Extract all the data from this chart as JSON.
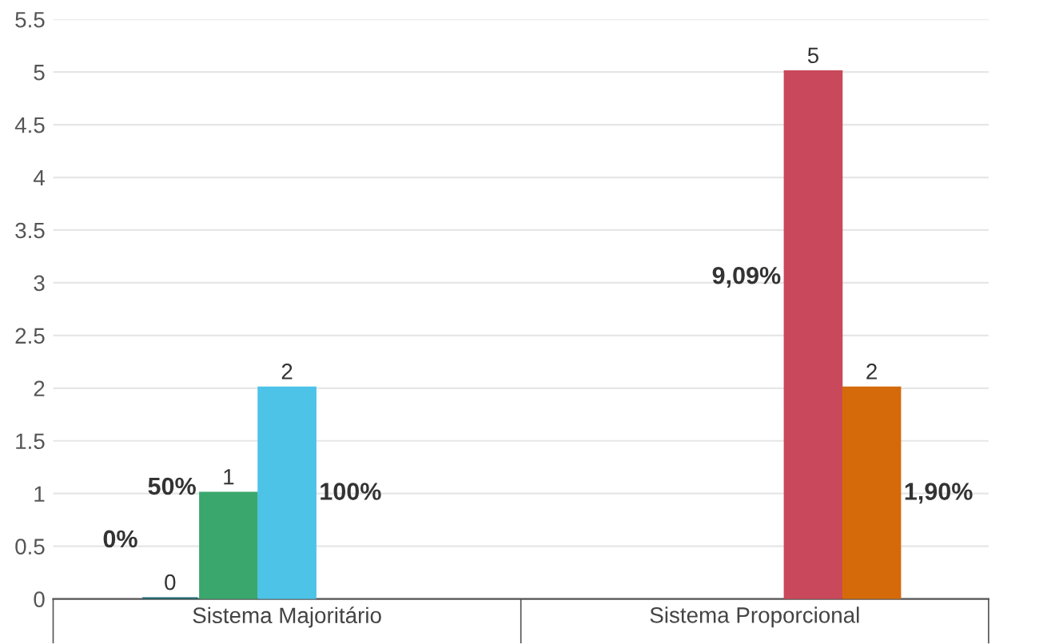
{
  "chart_data": {
    "type": "bar",
    "categories": [
      "Sistema Majoritário",
      "Sistema Proporcional"
    ],
    "series": [
      {
        "color": "#1d6b73",
        "values": [
          0,
          null
        ]
      },
      {
        "color": "#3aa76d",
        "values": [
          1,
          null
        ]
      },
      {
        "color": "#4dc3e8",
        "values": [
          2,
          null
        ]
      },
      {
        "color": "#c9485b",
        "values": [
          null,
          5
        ]
      },
      {
        "color": "#d46a0a",
        "values": [
          null,
          2
        ]
      }
    ],
    "data_labels": true,
    "annotations": [
      "0%",
      "50%",
      "100%",
      "9,09%",
      "1,90%"
    ],
    "ylim": [
      0,
      5.5
    ],
    "yticks": [
      0,
      0.5,
      1,
      1.5,
      2,
      2.5,
      3,
      3.5,
      4,
      4.5,
      5,
      5.5
    ],
    "grid": "y",
    "legend": false
  }
}
